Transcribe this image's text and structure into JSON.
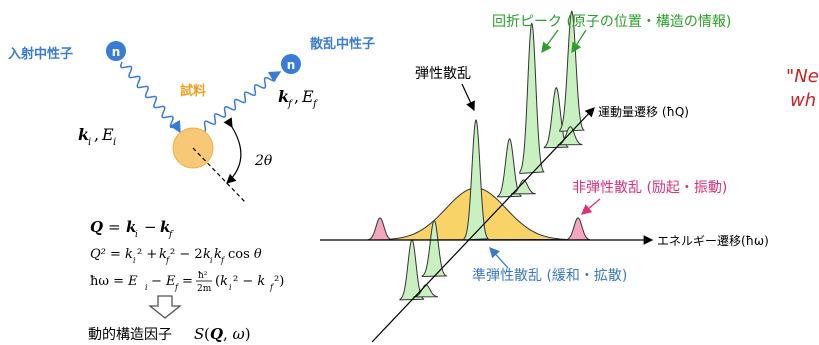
{
  "labels": {
    "incident_neutron": "入射中性子",
    "scattered_neutron": "散乱中性子",
    "neutron_symbol": "n",
    "sample": "試料",
    "ki_Ei": "k",
    "ki_sub": "i",
    "Ei_label": "E",
    "Ei_sub": "i",
    "kf_label": "k",
    "kf_sub": "f",
    "Ef_label": "E",
    "Ef_sub": "f",
    "angle": "2θ",
    "diffraction_peaks": "回折ピーク (原子の位置・構造の情報)",
    "elastic": "弾性散乱",
    "momentum_axis": "運動量遷移 (ħQ)",
    "inelastic": "非弾性散乱 (励起・振動)",
    "energy_axis": "エネルギー遷移(ħω)",
    "quasielastic": "準弾性散乱 (緩和・拡散)",
    "dynamic_structure_factor": "動的構造因子",
    "S_expr": "S(Q, ω)",
    "overflow_quote_1": "\"Ne",
    "overflow_quote_2": "wh"
  },
  "equations": {
    "eq1": "Q = k  − k",
    "eq2": "Q² = k  ² + k  ² − 2k  k  cos θ",
    "eq3": "ħω = E  − E  = ",
    "eq3_tail": "(k  ² − k  ²)",
    "frac_num": "ħ²",
    "frac_den": "2m"
  },
  "colors": {
    "green": "#2aa02a",
    "green_fill": "#c8f0c0",
    "pink": "#e0307a",
    "pink_fill": "#f4a6be",
    "blue": "#3a78c8",
    "yellow": "#f5c842",
    "orange": "#f0a020",
    "sample_fill": "#f7c875",
    "neutron_blue": "#3a7bd5",
    "red_text": "#d02020"
  }
}
